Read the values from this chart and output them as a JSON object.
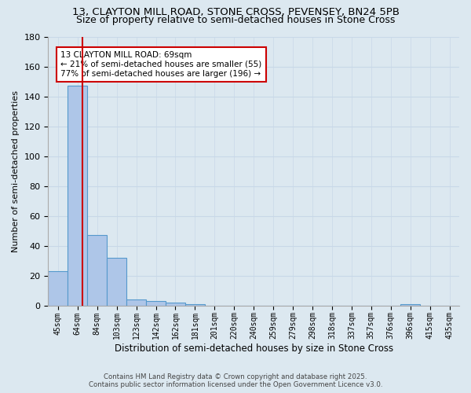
{
  "title1": "13, CLAYTON MILL ROAD, STONE CROSS, PEVENSEY, BN24 5PB",
  "title2": "Size of property relative to semi-detached houses in Stone Cross",
  "xlabel": "Distribution of semi-detached houses by size in Stone Cross",
  "ylabel": "Number of semi-detached properties",
  "footer1": "Contains HM Land Registry data © Crown copyright and database right 2025.",
  "footer2": "Contains public sector information licensed under the Open Government Licence v3.0.",
  "bin_labels": [
    "45sqm",
    "64sqm",
    "84sqm",
    "103sqm",
    "123sqm",
    "142sqm",
    "162sqm",
    "181sqm",
    "201sqm",
    "220sqm",
    "240sqm",
    "259sqm",
    "279sqm",
    "298sqm",
    "318sqm",
    "337sqm",
    "357sqm",
    "376sqm",
    "396sqm",
    "415sqm",
    "435sqm"
  ],
  "bin_values": [
    23,
    147,
    47,
    32,
    4,
    3,
    2,
    1,
    0,
    0,
    0,
    0,
    0,
    0,
    0,
    0,
    0,
    0,
    1,
    0,
    0
  ],
  "bar_color": "#aec6e8",
  "bar_edge_color": "#5599cc",
  "subject_sqm": 69,
  "pct_smaller": 21,
  "n_smaller": 55,
  "pct_larger": 77,
  "n_larger": 196,
  "annotation_box_color": "#ffffff",
  "annotation_box_edge": "#cc0000",
  "vline_color": "#cc0000",
  "ylim": [
    0,
    180
  ],
  "yticks": [
    0,
    20,
    40,
    60,
    80,
    100,
    120,
    140,
    160,
    180
  ],
  "grid_color": "#c8d8e8",
  "bg_color": "#dce8f0",
  "title_fontsize": 9.5,
  "subtitle_fontsize": 9
}
